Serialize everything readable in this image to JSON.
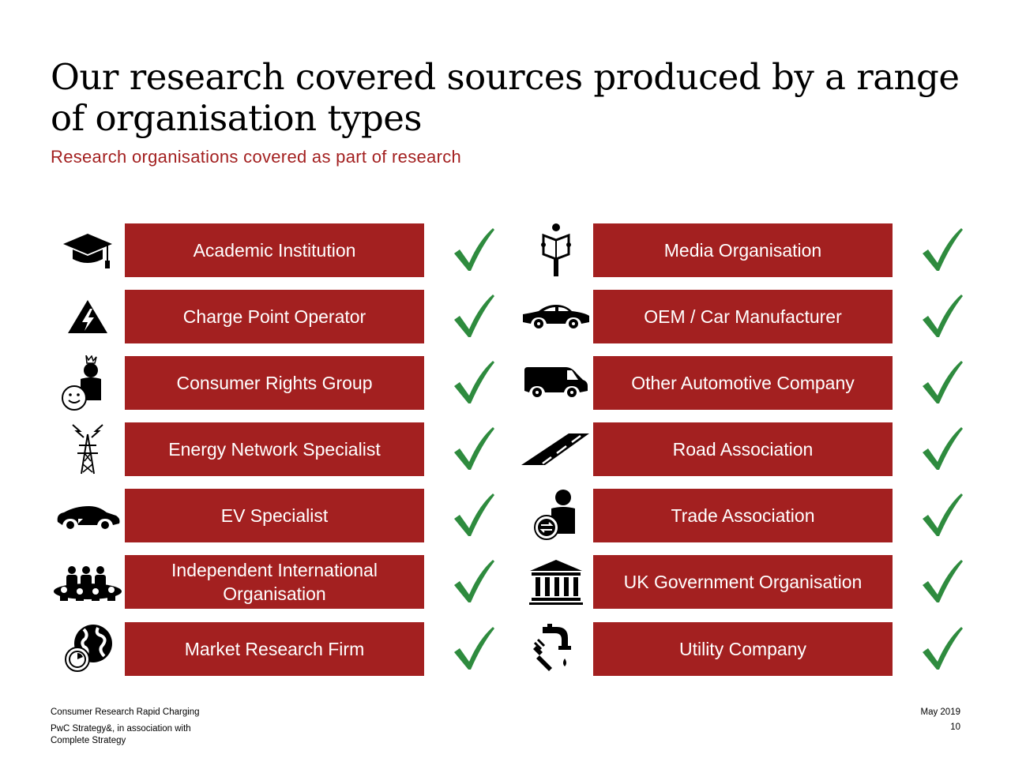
{
  "header": {
    "title": "Our research covered sources produced by a range of organisation types",
    "subtitle": "Research organisations covered as part of research"
  },
  "colors": {
    "accent_red": "#a32020",
    "check_green": "#2e8b3e",
    "icon": "#000000"
  },
  "left_column": [
    {
      "label": "Academic Institution",
      "icon": "graduation-cap-icon",
      "covered": true
    },
    {
      "label": "Charge Point Operator",
      "icon": "high-voltage-warning-icon",
      "covered": true
    },
    {
      "label": "Consumer Rights Group",
      "icon": "consumer-king-icon",
      "covered": true
    },
    {
      "label": "Energy Network Specialist",
      "icon": "transmission-tower-icon",
      "covered": true
    },
    {
      "label": "EV Specialist",
      "icon": "electric-car-icon",
      "covered": true
    },
    {
      "label": "Independent International Organisation",
      "icon": "group-meeting-icon",
      "covered": true
    },
    {
      "label": "Market Research Firm",
      "icon": "globe-clock-icon",
      "covered": true
    }
  ],
  "right_column": [
    {
      "label": "Media Organisation",
      "icon": "newspaper-reader-icon",
      "covered": true
    },
    {
      "label": "OEM / Car Manufacturer",
      "icon": "car-icon",
      "covered": true
    },
    {
      "label": "Other Automotive Company",
      "icon": "van-icon",
      "covered": true
    },
    {
      "label": "Road Association",
      "icon": "road-icon",
      "covered": true
    },
    {
      "label": "Trade Association",
      "icon": "trader-icon",
      "covered": true
    },
    {
      "label": "UK Government Organisation",
      "icon": "government-building-icon",
      "covered": true
    },
    {
      "label": "Utility Company",
      "icon": "utilities-icon",
      "covered": true
    }
  ],
  "footer": {
    "project": "Consumer Research Rapid Charging",
    "credit_line1": "PwC Strategy&, in association with",
    "credit_line2": "Complete Strategy",
    "date": "May 2019",
    "page_number": "10"
  }
}
